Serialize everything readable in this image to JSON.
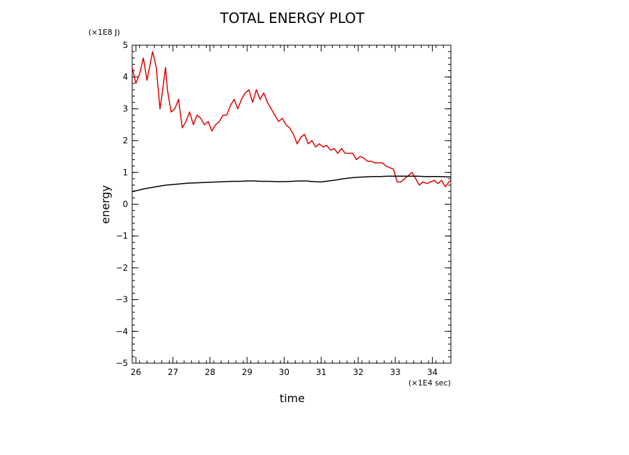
{
  "chart_data": {
    "type": "line",
    "title": "TOTAL ENERGY PLOT",
    "xlabel": "time",
    "ylabel": "energy",
    "x_unit_label": "(×1E4 sec)",
    "y_unit_label": "(×1E8 J)",
    "xlim": [
      25.9,
      34.5
    ],
    "ylim": [
      -5,
      5
    ],
    "x_ticks": [
      26,
      27,
      28,
      29,
      30,
      31,
      32,
      33,
      34
    ],
    "y_ticks": [
      -5,
      -4,
      -3,
      -2,
      -1,
      0,
      1,
      2,
      3,
      4,
      5
    ],
    "y_tick_labels": [
      "−5",
      "−4",
      "−3",
      "−2",
      "−1",
      "0",
      "1",
      "2",
      "3",
      "4",
      "5"
    ],
    "grid": false,
    "legend": "none",
    "series": [
      {
        "color": "#e00000",
        "x": [
          25.9,
          26.0,
          26.1,
          26.2,
          26.3,
          26.45,
          26.55,
          26.65,
          26.7,
          26.8,
          26.85,
          26.95,
          27.05,
          27.15,
          27.25,
          27.35,
          27.45,
          27.55,
          27.65,
          27.75,
          27.85,
          27.95,
          28.05,
          28.15,
          28.25,
          28.35,
          28.45,
          28.55,
          28.65,
          28.75,
          28.85,
          28.95,
          29.05,
          29.15,
          29.25,
          29.35,
          29.45,
          29.55,
          29.65,
          29.75,
          29.85,
          29.95,
          30.05,
          30.15,
          30.25,
          30.35,
          30.45,
          30.55,
          30.65,
          30.75,
          30.85,
          30.95,
          31.05,
          31.15,
          31.25,
          31.35,
          31.45,
          31.55,
          31.65,
          31.75,
          31.85,
          31.95,
          32.05,
          32.15,
          32.25,
          32.35,
          32.45,
          32.55,
          32.65,
          32.75,
          32.85,
          32.95,
          33.05,
          33.15,
          33.25,
          33.35,
          33.45,
          33.55,
          33.65,
          33.75,
          33.85,
          33.95,
          34.05,
          34.15,
          34.25,
          34.35,
          34.45,
          34.5
        ],
        "y": [
          4.3,
          3.8,
          4.1,
          4.6,
          3.9,
          4.8,
          4.3,
          3.0,
          3.4,
          4.3,
          3.6,
          2.9,
          3.0,
          3.3,
          2.4,
          2.6,
          2.9,
          2.5,
          2.8,
          2.7,
          2.5,
          2.6,
          2.3,
          2.5,
          2.6,
          2.8,
          2.8,
          3.1,
          3.3,
          3.0,
          3.3,
          3.5,
          3.6,
          3.2,
          3.6,
          3.3,
          3.5,
          3.2,
          3.0,
          2.8,
          2.6,
          2.7,
          2.5,
          2.4,
          2.2,
          1.9,
          2.1,
          2.2,
          1.9,
          2.0,
          1.8,
          1.9,
          1.8,
          1.85,
          1.7,
          1.75,
          1.6,
          1.75,
          1.6,
          1.6,
          1.6,
          1.4,
          1.5,
          1.45,
          1.35,
          1.35,
          1.3,
          1.3,
          1.3,
          1.2,
          1.15,
          1.1,
          0.7,
          0.7,
          0.8,
          0.9,
          1.0,
          0.8,
          0.6,
          0.7,
          0.65,
          0.7,
          0.75,
          0.65,
          0.75,
          0.55,
          0.7,
          0.75
        ]
      },
      {
        "color": "#000000",
        "x": [
          25.9,
          26.0,
          26.2,
          26.4,
          26.6,
          26.8,
          27.0,
          27.2,
          27.4,
          27.6,
          27.8,
          28.0,
          28.2,
          28.4,
          28.6,
          28.8,
          29.0,
          29.2,
          29.4,
          29.6,
          29.8,
          30.0,
          30.2,
          30.4,
          30.6,
          30.8,
          31.0,
          31.2,
          31.4,
          31.6,
          31.8,
          32.0,
          32.2,
          32.4,
          32.6,
          32.8,
          33.0,
          33.2,
          33.4,
          33.6,
          33.8,
          34.0,
          34.2,
          34.4,
          34.5
        ],
        "y": [
          0.4,
          0.42,
          0.48,
          0.52,
          0.56,
          0.6,
          0.62,
          0.64,
          0.66,
          0.67,
          0.68,
          0.69,
          0.7,
          0.71,
          0.72,
          0.72,
          0.73,
          0.73,
          0.72,
          0.72,
          0.71,
          0.71,
          0.72,
          0.73,
          0.73,
          0.71,
          0.7,
          0.73,
          0.76,
          0.8,
          0.83,
          0.85,
          0.86,
          0.87,
          0.87,
          0.88,
          0.88,
          0.88,
          0.88,
          0.88,
          0.87,
          0.87,
          0.87,
          0.86,
          0.86
        ]
      }
    ]
  }
}
